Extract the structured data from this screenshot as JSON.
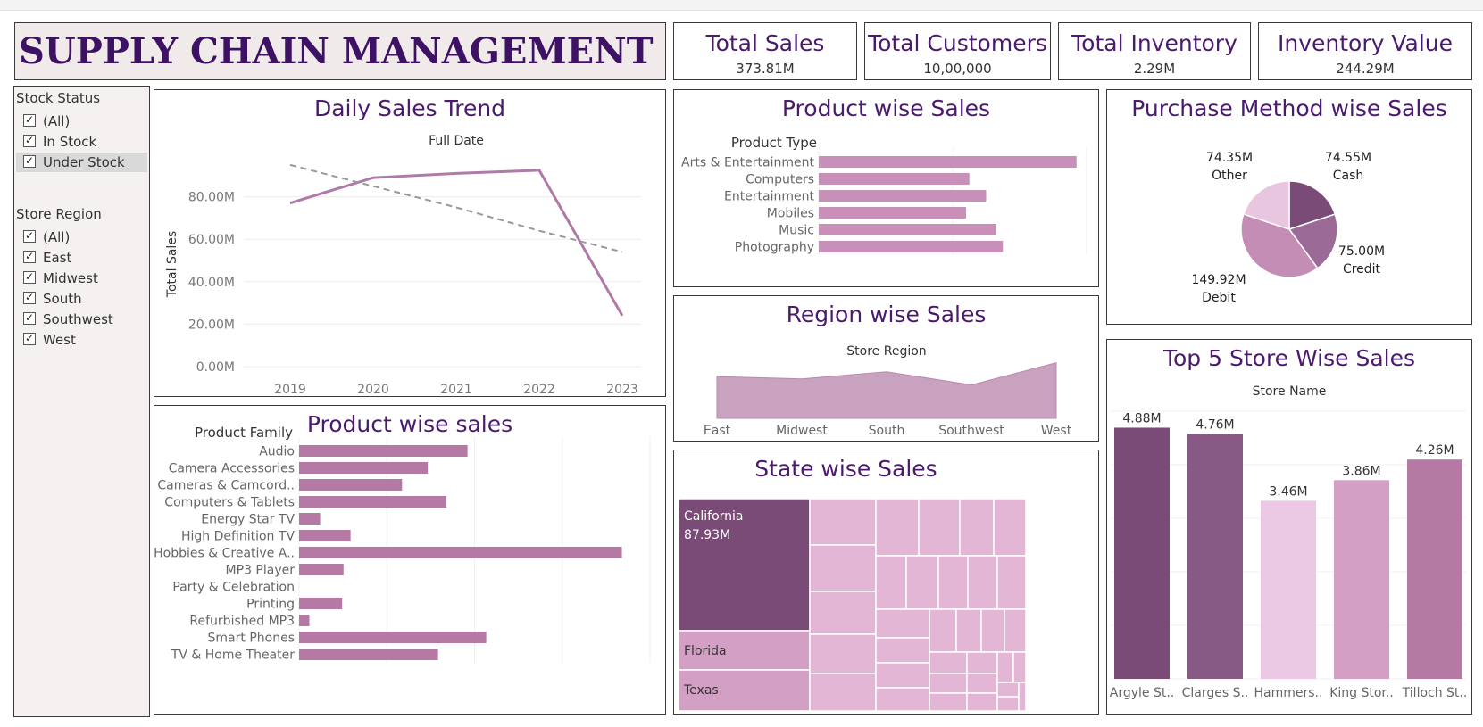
{
  "header": {
    "title": "SUPPLY CHAIN MANAGEMENT"
  },
  "kpis": [
    {
      "title": "Total Sales",
      "value": "373.81M"
    },
    {
      "title": "Total Customers",
      "value": "10,00,000"
    },
    {
      "title": "Total Inventory",
      "value": "2.29M"
    },
    {
      "title": "Inventory Value",
      "value": "244.29M"
    }
  ],
  "filters": {
    "stock_status": {
      "label": "Stock Status",
      "items": [
        {
          "label": "(All)",
          "checked": true
        },
        {
          "label": "In Stock",
          "checked": true
        },
        {
          "label": "Under Stock",
          "checked": true,
          "highlighted": true
        }
      ]
    },
    "store_region": {
      "label": "Store Region",
      "items": [
        {
          "label": "(All)",
          "checked": true
        },
        {
          "label": "East",
          "checked": true
        },
        {
          "label": "Midwest",
          "checked": true
        },
        {
          "label": "South",
          "checked": true
        },
        {
          "label": "Southwest",
          "checked": true
        },
        {
          "label": "West",
          "checked": true
        }
      ]
    }
  },
  "colors": {
    "title_purple": "#4b1a6e",
    "bar_mauve": "#b47aa3",
    "bar_light": "#c890b8",
    "dark_plum": "#7b4b77",
    "tree_pink": "#e2b6d4"
  },
  "chart_data": [
    {
      "id": "daily_sales_trend",
      "type": "line",
      "title": "Daily Sales Trend",
      "subtitle": "Full Date",
      "ylabel": "Total Sales",
      "x": [
        "2019",
        "2020",
        "2021",
        "2022",
        "2023"
      ],
      "yticks": [
        "0.00M",
        "20.00M",
        "40.00M",
        "60.00M",
        "80.00M"
      ],
      "ylim": [
        0,
        100
      ],
      "series": [
        {
          "values": [
            77,
            89,
            91,
            92.5,
            24
          ],
          "role": "data"
        },
        {
          "values": [
            95,
            85,
            75,
            64,
            54
          ],
          "role": "trend line",
          "dashed": true
        }
      ]
    },
    {
      "id": "product_type_sales",
      "type": "bar",
      "orientation": "horizontal",
      "title": "Product wise Sales",
      "category_header": "Product Type",
      "categories": [
        "Arts & Entertainment",
        "Computers",
        "Entertainment",
        "Mobiles",
        "Music",
        "Photography"
      ],
      "values": [
        77,
        45,
        50,
        44,
        53,
        55
      ],
      "xlim": [
        0,
        80
      ]
    },
    {
      "id": "purchase_method_sales",
      "type": "pie",
      "title": "Purchase Method wise Sales",
      "slices": [
        {
          "label": "Cash",
          "value": 74.55,
          "value_label": "74.55M",
          "color": "#7b4b77"
        },
        {
          "label": "Credit",
          "value": 75.0,
          "value_label": "75.00M",
          "color": "#9c6a96"
        },
        {
          "label": "Debit",
          "value": 149.92,
          "value_label": "149.92M",
          "color": "#c48db6"
        },
        {
          "label": "Other",
          "value": 74.35,
          "value_label": "74.35M",
          "color": "#e9c6df"
        }
      ]
    },
    {
      "id": "region_sales",
      "type": "area",
      "title": "Region wise Sales",
      "subtitle": "Store Region",
      "categories": [
        "East",
        "Midwest",
        "South",
        "Southwest",
        "West"
      ],
      "values": [
        70,
        66,
        78,
        56,
        93
      ],
      "ylim": [
        0,
        100
      ]
    },
    {
      "id": "product_family_sales",
      "type": "bar",
      "orientation": "horizontal",
      "title": "Product wise sales",
      "category_header": "Product Family",
      "categories": [
        "Audio",
        "Camera Accessories",
        "Cameras & Camcord..",
        "Computers & Tablets",
        "Energy Star TV",
        "High Definition TV",
        "Hobbies & Creative A..",
        "MP3 Player",
        "Party & Celebration",
        "Printing",
        "Refurbished MP3",
        "Smart Phones",
        "TV & Home Theater"
      ],
      "values": [
        36,
        27.5,
        22,
        31.5,
        4.5,
        11,
        69,
        9.5,
        0,
        9.2,
        2.2,
        40,
        29.7
      ],
      "xlim": [
        0,
        75
      ]
    },
    {
      "id": "state_sales",
      "type": "heatmap",
      "subtype": "treemap",
      "title": "State wise Sales",
      "labelled_cells": [
        {
          "label": "California",
          "value_label": "87.93M",
          "value": 87.93
        },
        {
          "label": "Florida"
        },
        {
          "label": "Texas"
        }
      ]
    },
    {
      "id": "top5_store_sales",
      "type": "bar",
      "title": "Top 5 Store Wise Sales",
      "subtitle": "Store Name",
      "categories": [
        "Argyle St..",
        "Clarges S..",
        "Hammers..",
        "King Stor..",
        "Tilloch St.."
      ],
      "values": [
        4.88,
        4.76,
        3.46,
        3.86,
        4.26
      ],
      "value_labels": [
        "4.88M",
        "4.76M",
        "3.46M",
        "3.86M",
        "4.26M"
      ],
      "colors": [
        "#7b4b77",
        "#865a84",
        "#ebc9e4",
        "#d49fc4",
        "#b47aa3"
      ],
      "ylim": [
        0,
        5.2
      ]
    }
  ]
}
